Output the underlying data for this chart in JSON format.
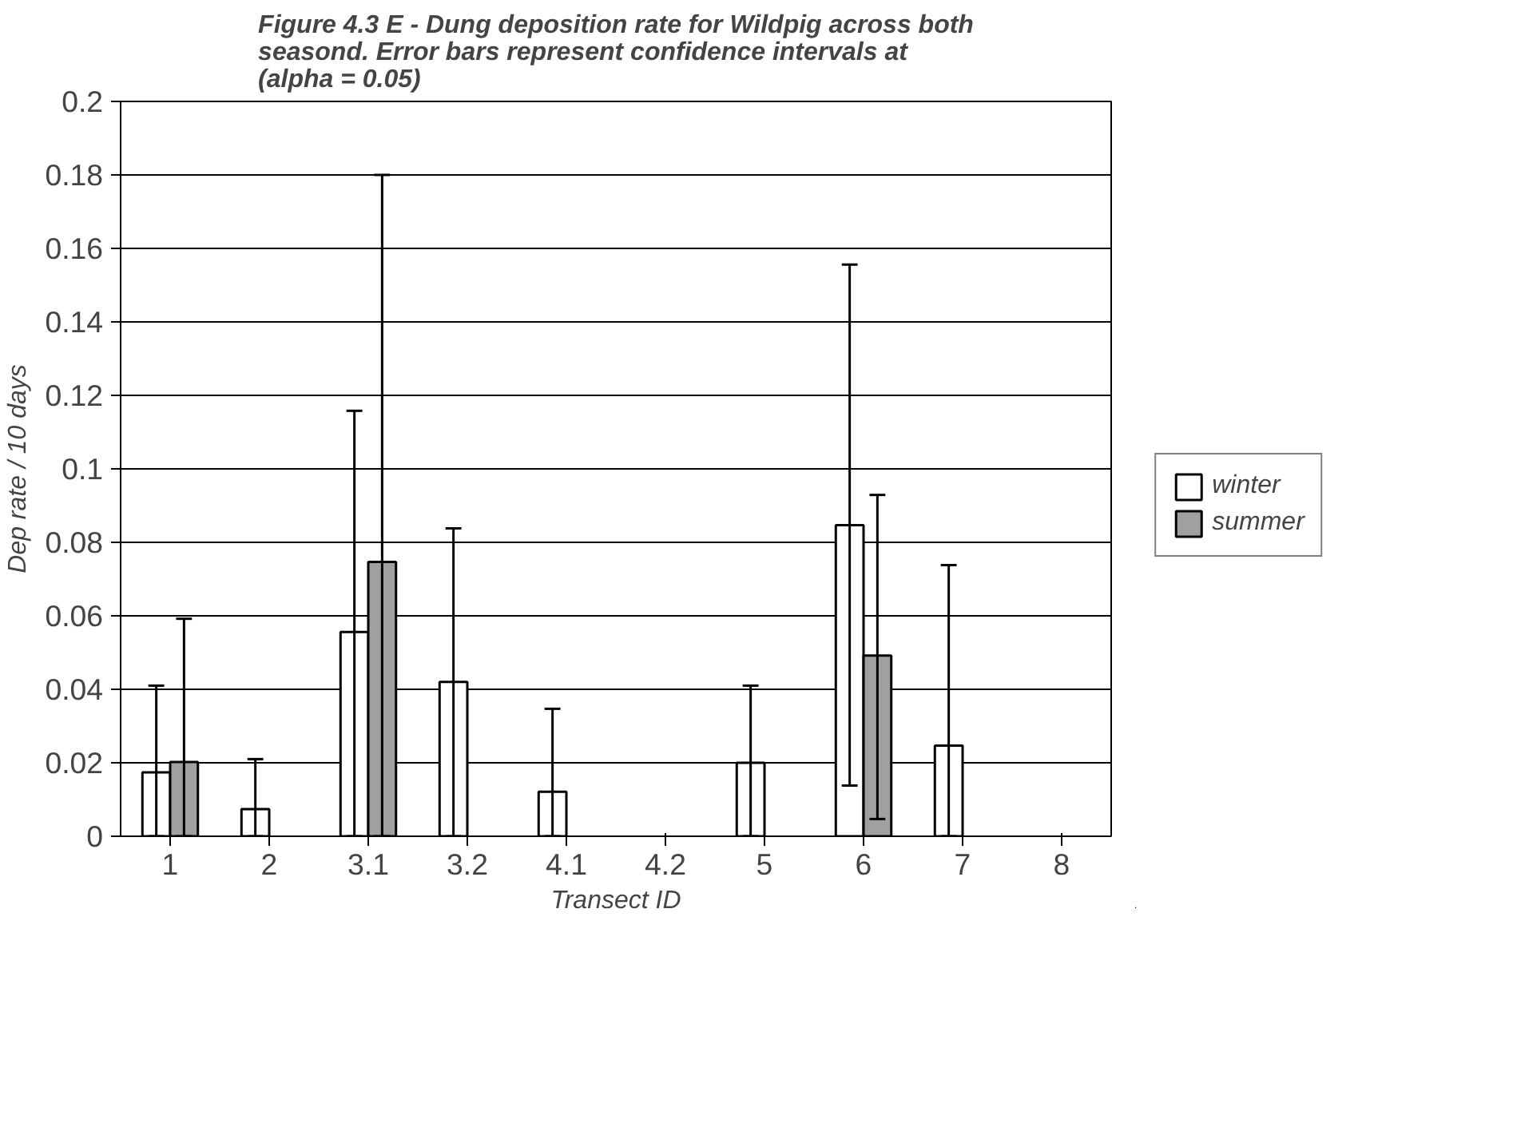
{
  "chart_data": {
    "type": "bar",
    "title": "Figure 4.3 E - Dung deposition rate for Wildpig across both seasond. Error bars represent confidence intervals at (alpha = 0.05)",
    "xlabel": "Transect ID",
    "ylabel": "Dep rate / 10 days",
    "categories": [
      "1",
      "2",
      "3.1",
      "3.2",
      "4.1",
      "4.2",
      "5",
      "6",
      "7",
      "8"
    ],
    "series": [
      {
        "name": "winter",
        "color": "#ffffff",
        "values": [
          0.0174,
          0.0074,
          0.0556,
          0.042,
          0.0121,
          0,
          0.02,
          0.0847,
          0.0247,
          0
        ],
        "errors": [
          [
            0,
            0.041
          ],
          [
            0,
            0.021
          ],
          [
            0,
            0.1158
          ],
          [
            0,
            0.0838
          ],
          [
            0,
            0.0347
          ],
          null,
          [
            0,
            0.041
          ],
          [
            0.0138,
            0.1556
          ],
          [
            0,
            0.0738
          ],
          null
        ]
      },
      {
        "name": "summer",
        "color": "#a0a0a0",
        "values": [
          0.0202,
          0,
          0.0747,
          0,
          0,
          0,
          0,
          0.0492,
          0,
          0
        ],
        "errors": [
          [
            0,
            0.0592
          ],
          null,
          [
            0,
            0.18
          ],
          null,
          null,
          null,
          null,
          [
            0.0047,
            0.0929
          ],
          null,
          null
        ]
      }
    ],
    "ylim": [
      0,
      0.2
    ],
    "yticks": [
      0,
      0.02,
      0.04,
      0.06,
      0.08,
      0.1,
      0.12,
      0.14,
      0.16,
      0.18,
      0.2
    ],
    "grid": "y",
    "legend": "right"
  }
}
